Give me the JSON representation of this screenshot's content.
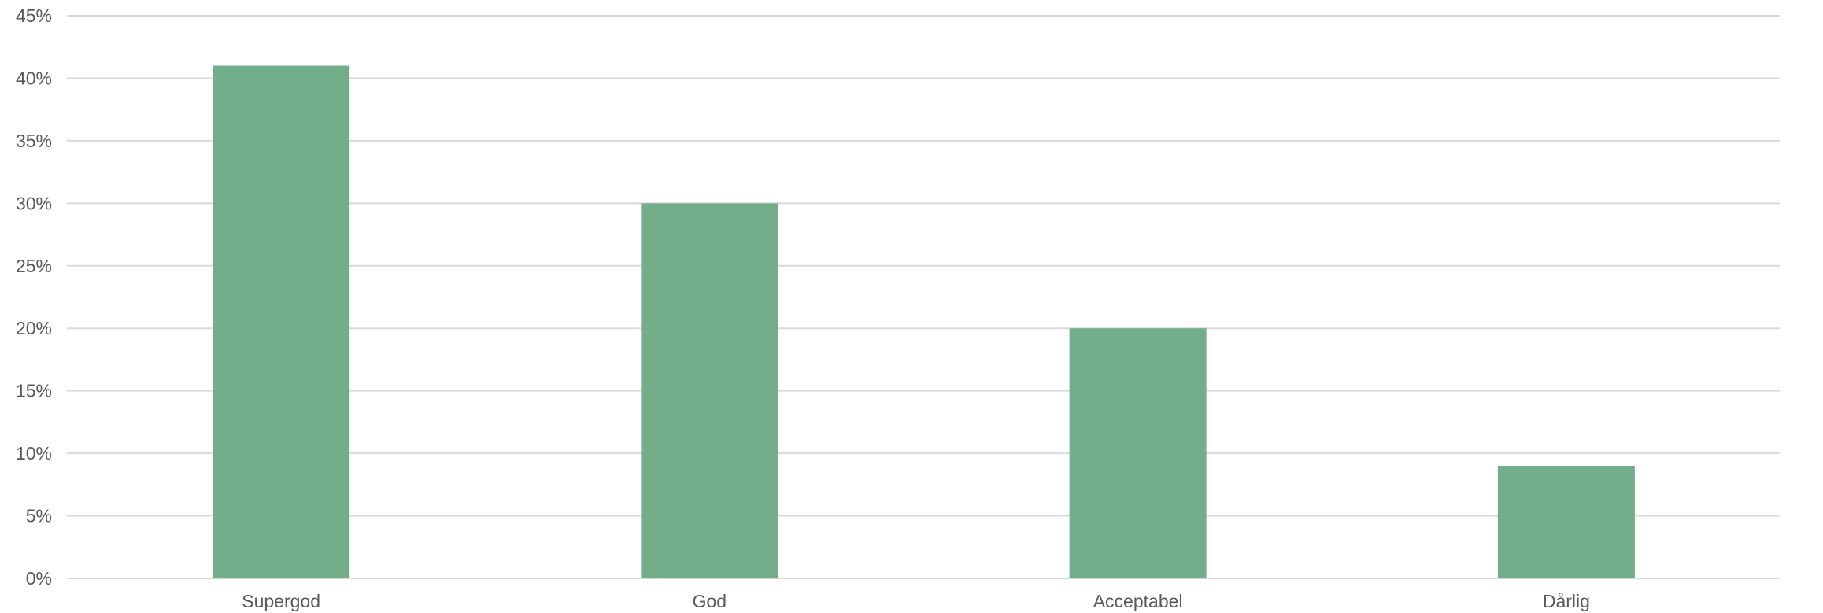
{
  "chart_data": {
    "type": "bar",
    "title": "",
    "xlabel": "",
    "ylabel": "",
    "categories": [
      "Supergod",
      "God",
      "Acceptabel",
      "Dårlig"
    ],
    "values": [
      41,
      30,
      20,
      9
    ],
    "value_format": "percent",
    "ylim": [
      0,
      45
    ],
    "yticks": [
      0,
      5,
      10,
      15,
      20,
      25,
      30,
      35,
      40,
      45
    ],
    "ytick_labels": [
      "0%",
      "5%",
      "10%",
      "15%",
      "20%",
      "25%",
      "30%",
      "35%",
      "40%",
      "45%"
    ],
    "grid": true,
    "legend": "none",
    "bar_color": "#72ae89",
    "grid_color": "#d9d9d9",
    "label_color": "#595959"
  }
}
